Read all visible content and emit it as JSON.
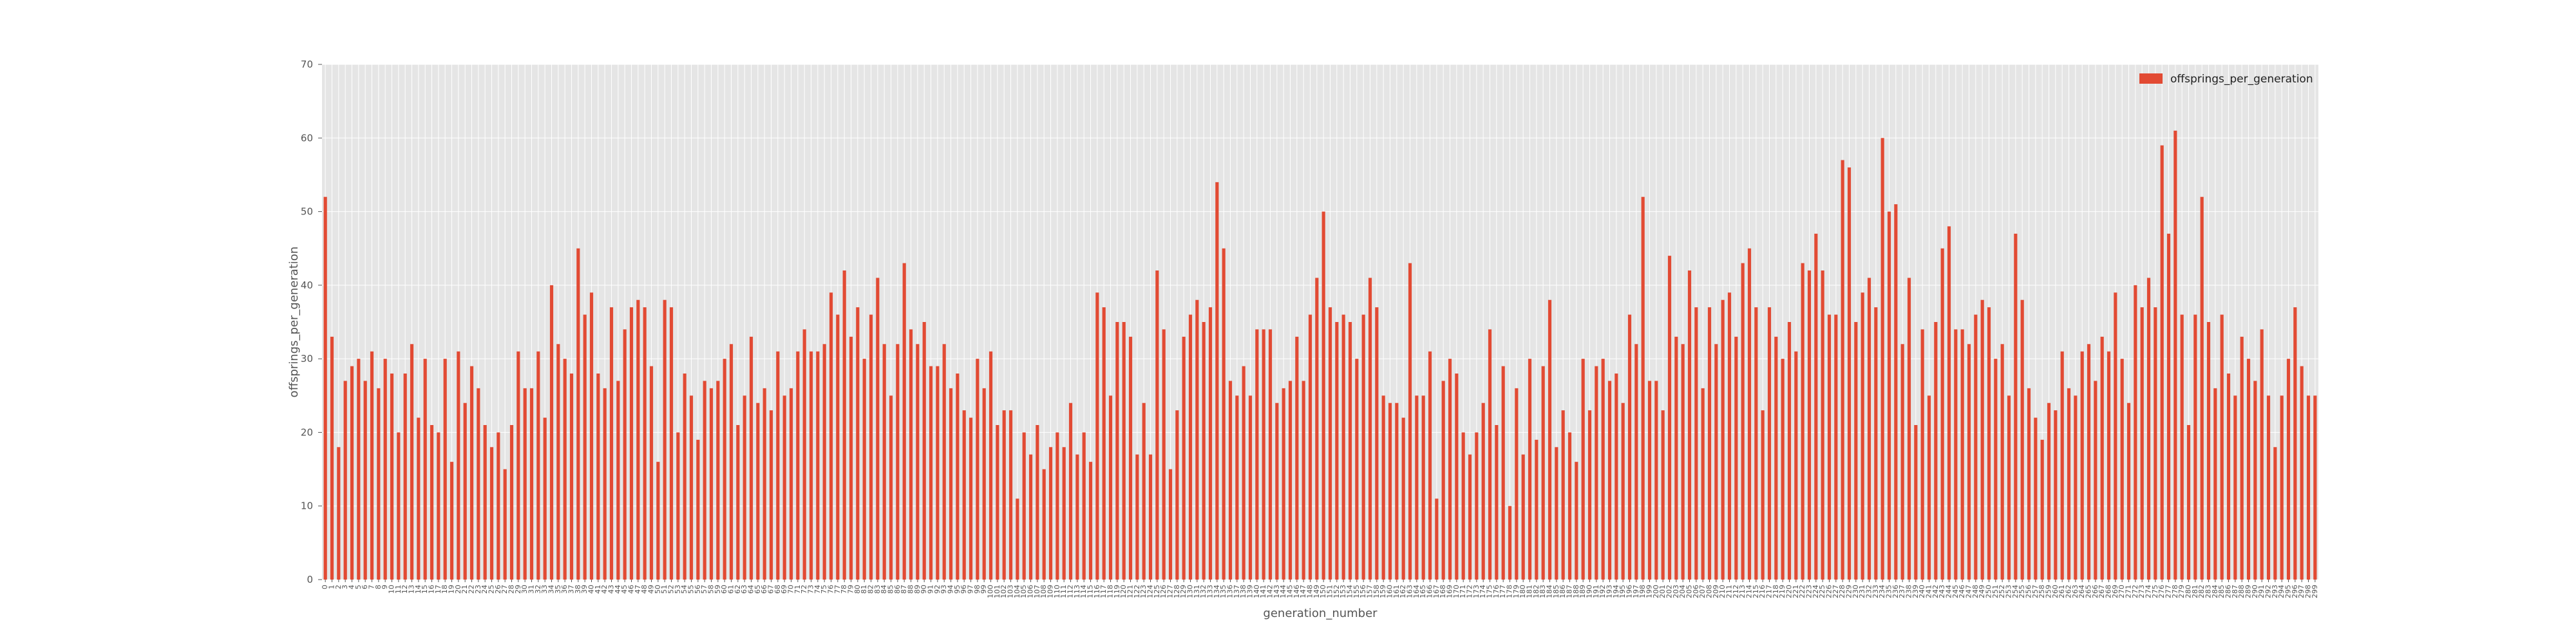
{
  "colors": {
    "bar": "#E24A33",
    "plot_bg": "#E5E5E5",
    "grid": "#FFFFFF",
    "text": "#555555"
  },
  "chart_data": {
    "type": "bar",
    "title": "",
    "xlabel": "generation_number",
    "ylabel": "offsprings_per_generation",
    "ylim": [
      0,
      70
    ],
    "yticks": [
      0,
      10,
      20,
      30,
      40,
      50,
      60,
      70
    ],
    "grid": true,
    "legend": {
      "placement": "top-right",
      "entries": [
        "offsprings_per_generation"
      ]
    },
    "x_start": 0,
    "series": [
      {
        "name": "offsprings_per_generation",
        "values": [
          52,
          33,
          18,
          27,
          29,
          30,
          27,
          31,
          26,
          30,
          28,
          20,
          28,
          32,
          22,
          30,
          21,
          20,
          30,
          16,
          31,
          24,
          29,
          26,
          21,
          18,
          20,
          15,
          21,
          31,
          26,
          26,
          31,
          22,
          40,
          32,
          30,
          28,
          45,
          36,
          39,
          28,
          26,
          37,
          27,
          34,
          37,
          38,
          37,
          29,
          16,
          38,
          37,
          20,
          28,
          25,
          19,
          27,
          26,
          27,
          30,
          32,
          21,
          25,
          33,
          24,
          26,
          23,
          31,
          25,
          26,
          31,
          34,
          31,
          31,
          32,
          39,
          36,
          42,
          33,
          37,
          30,
          36,
          41,
          32,
          25,
          32,
          43,
          34,
          32,
          35,
          29,
          29,
          32,
          26,
          28,
          23,
          22,
          30,
          26,
          31,
          21,
          23,
          23,
          11,
          20,
          17,
          21,
          15,
          18,
          20,
          18,
          24,
          17,
          20,
          16,
          39,
          37,
          25,
          35,
          35,
          33,
          17,
          24,
          17,
          42,
          34,
          15,
          23,
          33,
          36,
          38,
          35,
          37,
          54,
          45,
          27,
          25,
          29,
          25,
          34,
          34,
          34,
          24,
          26,
          27,
          33,
          27,
          36,
          41,
          50,
          37,
          35,
          36,
          35,
          30,
          36,
          41,
          37,
          25,
          24,
          24,
          22,
          43,
          25,
          25,
          31,
          11,
          27,
          30,
          28,
          20,
          17,
          20,
          24,
          34,
          21,
          29,
          10,
          26,
          17,
          30,
          19,
          29,
          38,
          18,
          23,
          20,
          16,
          30,
          23,
          29,
          30,
          27,
          28,
          24,
          36,
          32,
          52,
          27,
          27,
          23,
          44,
          33,
          32,
          42,
          37,
          26,
          37,
          32,
          38,
          39,
          33,
          43,
          45,
          37,
          23,
          37,
          33,
          30,
          35,
          31,
          43,
          42,
          47,
          42,
          36,
          36,
          57,
          56,
          35,
          39,
          41,
          37,
          60,
          50,
          51,
          32,
          41,
          21,
          34,
          25,
          35,
          45,
          48,
          34,
          34,
          32,
          36,
          38,
          37,
          30,
          32,
          25,
          47,
          38,
          26,
          22,
          19,
          24,
          23,
          31,
          26,
          25,
          31,
          32,
          27,
          33,
          31,
          39,
          30,
          24,
          40,
          37,
          41,
          37,
          59,
          47,
          61,
          36,
          21,
          36,
          52,
          35,
          26,
          36,
          28,
          25,
          33,
          30,
          27,
          34,
          25,
          18,
          25,
          30,
          37,
          29,
          25,
          25
        ]
      }
    ]
  }
}
